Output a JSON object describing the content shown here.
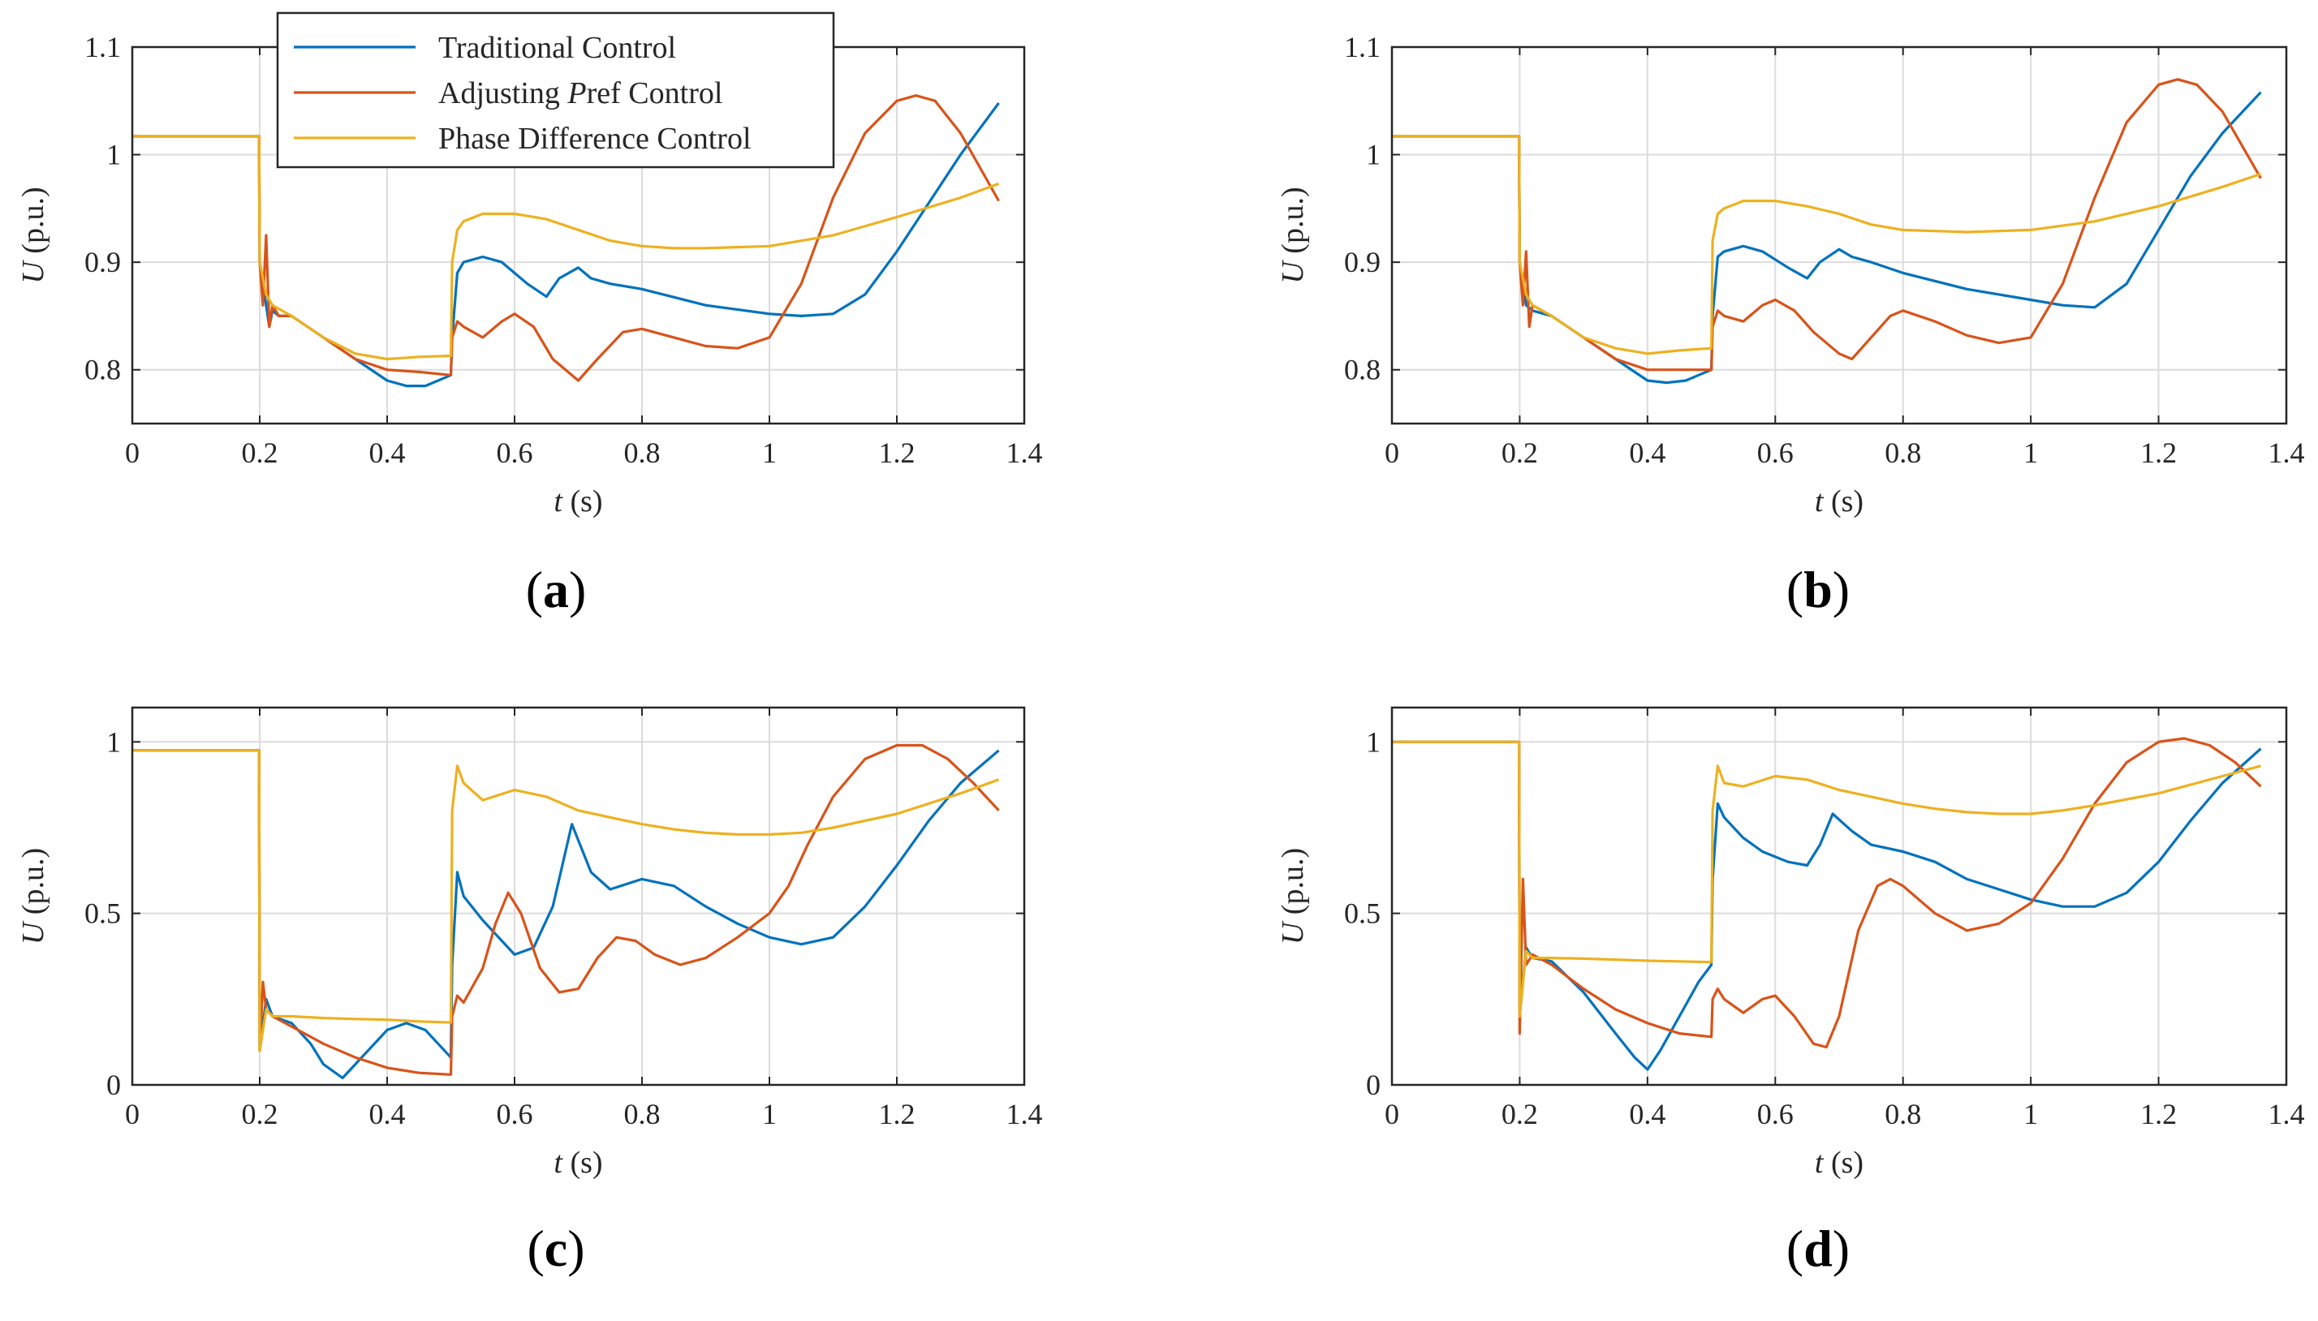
{
  "legend": {
    "entries": [
      {
        "name": "Traditional Control",
        "color": "#0072BD"
      },
      {
        "name": "Adjusting  Pref Control",
        "color": "#D95319"
      },
      {
        "name": "Phase Difference Control",
        "color": "#EDB120"
      }
    ]
  },
  "chart_data": [
    {
      "type": "line",
      "panel_label": "(a)",
      "xlabel": "t (s)",
      "ylabel": "U (p.u.)",
      "xlim": [
        0,
        1.4
      ],
      "ylim": [
        0.75,
        1.1
      ],
      "xticks": [
        "0",
        "0.2",
        "0.4",
        "0.6",
        "0.8",
        "1",
        "1.2",
        "1.4"
      ],
      "yticks": [
        "0.8",
        "0.9",
        "1",
        "1.1"
      ],
      "ytick_values": [
        0.8,
        0.9,
        1.0,
        1.1
      ],
      "grid": true,
      "legend_position": "top-left",
      "series": [
        {
          "name": "Traditional Control",
          "color": "#0072BD",
          "x": [
            0,
            0.199,
            0.2,
            0.21,
            0.215,
            0.22,
            0.23,
            0.25,
            0.3,
            0.35,
            0.4,
            0.43,
            0.46,
            0.48,
            0.5,
            0.502,
            0.51,
            0.52,
            0.55,
            0.58,
            0.62,
            0.65,
            0.67,
            0.7,
            0.72,
            0.75,
            0.8,
            0.9,
            1.0,
            1.05,
            1.1,
            1.15,
            1.2,
            1.25,
            1.3,
            1.36
          ],
          "y": [
            1.017,
            1.017,
            0.9,
            0.86,
            0.84,
            0.855,
            0.85,
            0.85,
            0.83,
            0.81,
            0.79,
            0.785,
            0.785,
            0.79,
            0.795,
            0.83,
            0.89,
            0.9,
            0.905,
            0.9,
            0.88,
            0.868,
            0.885,
            0.895,
            0.885,
            0.88,
            0.875,
            0.86,
            0.852,
            0.85,
            0.852,
            0.87,
            0.91,
            0.955,
            1.0,
            1.048
          ]
        },
        {
          "name": "Adjusting  Pref Control",
          "color": "#D95319",
          "x": [
            0,
            0.199,
            0.2,
            0.205,
            0.21,
            0.215,
            0.22,
            0.23,
            0.25,
            0.3,
            0.35,
            0.4,
            0.45,
            0.5,
            0.502,
            0.51,
            0.52,
            0.55,
            0.58,
            0.6,
            0.63,
            0.66,
            0.7,
            0.73,
            0.77,
            0.8,
            0.85,
            0.9,
            0.95,
            1.0,
            1.05,
            1.1,
            1.15,
            1.2,
            1.23,
            1.26,
            1.3,
            1.36
          ],
          "y": [
            1.017,
            1.017,
            0.9,
            0.86,
            0.925,
            0.84,
            0.86,
            0.85,
            0.85,
            0.83,
            0.81,
            0.8,
            0.798,
            0.795,
            0.83,
            0.845,
            0.84,
            0.83,
            0.845,
            0.852,
            0.84,
            0.81,
            0.79,
            0.81,
            0.835,
            0.838,
            0.83,
            0.822,
            0.82,
            0.83,
            0.88,
            0.96,
            1.02,
            1.05,
            1.055,
            1.05,
            1.02,
            0.957
          ]
        },
        {
          "name": "Phase Difference Control",
          "color": "#EDB120",
          "x": [
            0,
            0.199,
            0.2,
            0.21,
            0.22,
            0.25,
            0.3,
            0.35,
            0.4,
            0.45,
            0.5,
            0.502,
            0.51,
            0.52,
            0.55,
            0.6,
            0.65,
            0.7,
            0.75,
            0.8,
            0.85,
            0.9,
            1.0,
            1.1,
            1.2,
            1.3,
            1.36
          ],
          "y": [
            1.017,
            1.017,
            0.9,
            0.87,
            0.86,
            0.85,
            0.83,
            0.815,
            0.81,
            0.812,
            0.813,
            0.9,
            0.93,
            0.938,
            0.945,
            0.945,
            0.94,
            0.93,
            0.92,
            0.915,
            0.913,
            0.913,
            0.915,
            0.925,
            0.942,
            0.96,
            0.973
          ]
        }
      ]
    },
    {
      "type": "line",
      "panel_label": "(b)",
      "xlabel": "t (s)",
      "ylabel": "U (p.u.)",
      "xlim": [
        0,
        1.4
      ],
      "ylim": [
        0.75,
        1.1
      ],
      "xticks": [
        "0",
        "0.2",
        "0.4",
        "0.6",
        "0.8",
        "1",
        "1.2",
        "1.4"
      ],
      "yticks": [
        "0.8",
        "0.9",
        "1",
        "1.1"
      ],
      "ytick_values": [
        0.8,
        0.9,
        1.0,
        1.1
      ],
      "grid": true,
      "series": [
        {
          "name": "Traditional Control",
          "color": "#0072BD",
          "x": [
            0,
            0.199,
            0.2,
            0.21,
            0.22,
            0.25,
            0.3,
            0.35,
            0.4,
            0.43,
            0.46,
            0.48,
            0.5,
            0.502,
            0.51,
            0.52,
            0.55,
            0.58,
            0.62,
            0.65,
            0.67,
            0.7,
            0.72,
            0.75,
            0.8,
            0.9,
            1.0,
            1.05,
            1.1,
            1.15,
            1.2,
            1.25,
            1.3,
            1.36
          ],
          "y": [
            1.017,
            1.017,
            0.9,
            0.86,
            0.855,
            0.85,
            0.83,
            0.81,
            0.79,
            0.788,
            0.79,
            0.795,
            0.8,
            0.85,
            0.905,
            0.91,
            0.915,
            0.91,
            0.895,
            0.885,
            0.9,
            0.912,
            0.905,
            0.9,
            0.89,
            0.875,
            0.865,
            0.86,
            0.858,
            0.88,
            0.93,
            0.98,
            1.02,
            1.058
          ]
        },
        {
          "name": "Adjusting  Pref Control",
          "color": "#D95319",
          "x": [
            0,
            0.199,
            0.2,
            0.205,
            0.21,
            0.215,
            0.22,
            0.25,
            0.3,
            0.35,
            0.4,
            0.45,
            0.5,
            0.502,
            0.51,
            0.52,
            0.55,
            0.58,
            0.6,
            0.63,
            0.66,
            0.7,
            0.72,
            0.75,
            0.78,
            0.8,
            0.85,
            0.9,
            0.95,
            1.0,
            1.05,
            1.1,
            1.15,
            1.2,
            1.23,
            1.26,
            1.3,
            1.36
          ],
          "y": [
            1.017,
            1.017,
            0.9,
            0.86,
            0.91,
            0.84,
            0.86,
            0.85,
            0.83,
            0.81,
            0.8,
            0.8,
            0.8,
            0.84,
            0.855,
            0.85,
            0.845,
            0.86,
            0.865,
            0.855,
            0.835,
            0.815,
            0.81,
            0.83,
            0.85,
            0.855,
            0.845,
            0.832,
            0.825,
            0.83,
            0.88,
            0.96,
            1.03,
            1.065,
            1.07,
            1.065,
            1.04,
            0.978
          ]
        },
        {
          "name": "Phase Difference Control",
          "color": "#EDB120",
          "x": [
            0,
            0.199,
            0.2,
            0.21,
            0.22,
            0.25,
            0.3,
            0.35,
            0.4,
            0.45,
            0.5,
            0.502,
            0.51,
            0.52,
            0.55,
            0.6,
            0.65,
            0.7,
            0.75,
            0.8,
            0.9,
            1.0,
            1.1,
            1.2,
            1.3,
            1.36
          ],
          "y": [
            1.017,
            1.017,
            0.9,
            0.87,
            0.86,
            0.85,
            0.83,
            0.82,
            0.815,
            0.818,
            0.82,
            0.92,
            0.945,
            0.95,
            0.957,
            0.957,
            0.952,
            0.945,
            0.935,
            0.93,
            0.928,
            0.93,
            0.938,
            0.952,
            0.97,
            0.982
          ]
        }
      ]
    },
    {
      "type": "line",
      "panel_label": "(c)",
      "xlabel": "t (s)",
      "ylabel": "U (p.u.)",
      "xlim": [
        0,
        1.4
      ],
      "ylim": [
        0,
        1.1
      ],
      "xticks": [
        "0",
        "0.2",
        "0.4",
        "0.6",
        "0.8",
        "1",
        "1.2",
        "1.4"
      ],
      "yticks": [
        "0",
        "0.5",
        "1"
      ],
      "ytick_values": [
        0,
        0.5,
        1.0
      ],
      "grid": true,
      "series": [
        {
          "name": "Traditional Control",
          "color": "#0072BD",
          "x": [
            0,
            0.199,
            0.2,
            0.21,
            0.22,
            0.25,
            0.28,
            0.3,
            0.33,
            0.36,
            0.4,
            0.43,
            0.46,
            0.48,
            0.5,
            0.502,
            0.51,
            0.52,
            0.55,
            0.58,
            0.6,
            0.63,
            0.66,
            0.69,
            0.72,
            0.75,
            0.8,
            0.85,
            0.9,
            0.95,
            1.0,
            1.05,
            1.1,
            1.15,
            1.2,
            1.25,
            1.3,
            1.36
          ],
          "y": [
            0.975,
            0.975,
            0.1,
            0.25,
            0.2,
            0.18,
            0.12,
            0.06,
            0.02,
            0.08,
            0.16,
            0.18,
            0.16,
            0.12,
            0.08,
            0.35,
            0.62,
            0.55,
            0.48,
            0.42,
            0.38,
            0.4,
            0.52,
            0.76,
            0.62,
            0.57,
            0.6,
            0.58,
            0.52,
            0.47,
            0.43,
            0.41,
            0.43,
            0.52,
            0.64,
            0.77,
            0.88,
            0.975
          ]
        },
        {
          "name": "Adjusting  Pref Control",
          "color": "#D95319",
          "x": [
            0,
            0.199,
            0.2,
            0.205,
            0.21,
            0.22,
            0.25,
            0.3,
            0.35,
            0.4,
            0.45,
            0.5,
            0.502,
            0.51,
            0.52,
            0.55,
            0.57,
            0.59,
            0.61,
            0.64,
            0.67,
            0.7,
            0.73,
            0.76,
            0.79,
            0.82,
            0.86,
            0.9,
            0.95,
            1.0,
            1.03,
            1.06,
            1.1,
            1.15,
            1.2,
            1.24,
            1.28,
            1.32,
            1.36
          ],
          "y": [
            0.975,
            0.975,
            0.1,
            0.3,
            0.22,
            0.2,
            0.17,
            0.12,
            0.08,
            0.05,
            0.035,
            0.03,
            0.2,
            0.26,
            0.24,
            0.34,
            0.47,
            0.56,
            0.5,
            0.34,
            0.27,
            0.28,
            0.37,
            0.43,
            0.42,
            0.38,
            0.35,
            0.37,
            0.43,
            0.5,
            0.58,
            0.7,
            0.84,
            0.95,
            0.99,
            0.99,
            0.95,
            0.88,
            0.8
          ]
        },
        {
          "name": "Phase Difference Control",
          "color": "#EDB120",
          "x": [
            0,
            0.199,
            0.2,
            0.21,
            0.22,
            0.25,
            0.3,
            0.35,
            0.4,
            0.45,
            0.5,
            0.502,
            0.51,
            0.52,
            0.55,
            0.6,
            0.65,
            0.7,
            0.75,
            0.8,
            0.85,
            0.9,
            0.95,
            1.0,
            1.05,
            1.1,
            1.2,
            1.3,
            1.36
          ],
          "y": [
            0.975,
            0.975,
            0.1,
            0.22,
            0.2,
            0.2,
            0.195,
            0.192,
            0.19,
            0.185,
            0.182,
            0.8,
            0.93,
            0.88,
            0.83,
            0.86,
            0.84,
            0.8,
            0.78,
            0.76,
            0.745,
            0.735,
            0.73,
            0.73,
            0.735,
            0.75,
            0.79,
            0.85,
            0.89
          ]
        }
      ]
    },
    {
      "type": "line",
      "panel_label": "(d)",
      "xlabel": "t (s)",
      "ylabel": "U (p.u.)",
      "xlim": [
        0,
        1.4
      ],
      "ylim": [
        0,
        1.1
      ],
      "xticks": [
        "0",
        "0.2",
        "0.4",
        "0.6",
        "0.8",
        "1",
        "1.2",
        "1.4"
      ],
      "yticks": [
        "0",
        "0.5",
        "1"
      ],
      "ytick_values": [
        0,
        0.5,
        1.0
      ],
      "grid": true,
      "series": [
        {
          "name": "Traditional Control",
          "color": "#0072BD",
          "x": [
            0,
            0.199,
            0.2,
            0.21,
            0.22,
            0.25,
            0.3,
            0.35,
            0.38,
            0.4,
            0.42,
            0.45,
            0.48,
            0.5,
            0.502,
            0.51,
            0.52,
            0.55,
            0.58,
            0.62,
            0.65,
            0.67,
            0.69,
            0.72,
            0.75,
            0.8,
            0.85,
            0.9,
            0.95,
            1.0,
            1.05,
            1.1,
            1.15,
            1.2,
            1.25,
            1.3,
            1.36
          ],
          "y": [
            1.0,
            1.0,
            0.2,
            0.4,
            0.37,
            0.36,
            0.27,
            0.15,
            0.08,
            0.045,
            0.1,
            0.2,
            0.3,
            0.35,
            0.6,
            0.82,
            0.78,
            0.72,
            0.68,
            0.65,
            0.64,
            0.7,
            0.79,
            0.74,
            0.7,
            0.68,
            0.65,
            0.6,
            0.57,
            0.54,
            0.52,
            0.52,
            0.56,
            0.65,
            0.77,
            0.88,
            0.98
          ]
        },
        {
          "name": "Adjusting  Pref Control",
          "color": "#D95319",
          "x": [
            0,
            0.199,
            0.2,
            0.205,
            0.21,
            0.22,
            0.25,
            0.3,
            0.35,
            0.4,
            0.45,
            0.5,
            0.502,
            0.51,
            0.52,
            0.55,
            0.58,
            0.6,
            0.63,
            0.66,
            0.68,
            0.7,
            0.73,
            0.76,
            0.78,
            0.8,
            0.85,
            0.9,
            0.95,
            1.0,
            1.05,
            1.1,
            1.15,
            1.2,
            1.24,
            1.28,
            1.32,
            1.36
          ],
          "y": [
            1.0,
            1.0,
            0.15,
            0.6,
            0.35,
            0.38,
            0.35,
            0.28,
            0.22,
            0.18,
            0.15,
            0.14,
            0.25,
            0.28,
            0.25,
            0.21,
            0.25,
            0.26,
            0.2,
            0.12,
            0.11,
            0.2,
            0.45,
            0.58,
            0.6,
            0.58,
            0.5,
            0.45,
            0.47,
            0.53,
            0.66,
            0.82,
            0.94,
            1.0,
            1.01,
            0.99,
            0.94,
            0.87
          ]
        },
        {
          "name": "Phase Difference Control",
          "color": "#EDB120",
          "x": [
            0,
            0.199,
            0.2,
            0.21,
            0.22,
            0.25,
            0.3,
            0.35,
            0.4,
            0.45,
            0.5,
            0.502,
            0.51,
            0.52,
            0.55,
            0.6,
            0.65,
            0.7,
            0.75,
            0.8,
            0.85,
            0.9,
            0.95,
            1.0,
            1.05,
            1.1,
            1.2,
            1.3,
            1.36
          ],
          "y": [
            1.0,
            1.0,
            0.2,
            0.39,
            0.37,
            0.37,
            0.368,
            0.365,
            0.362,
            0.36,
            0.358,
            0.8,
            0.93,
            0.88,
            0.87,
            0.9,
            0.89,
            0.86,
            0.84,
            0.82,
            0.805,
            0.795,
            0.79,
            0.79,
            0.8,
            0.815,
            0.85,
            0.9,
            0.93
          ]
        }
      ]
    }
  ]
}
